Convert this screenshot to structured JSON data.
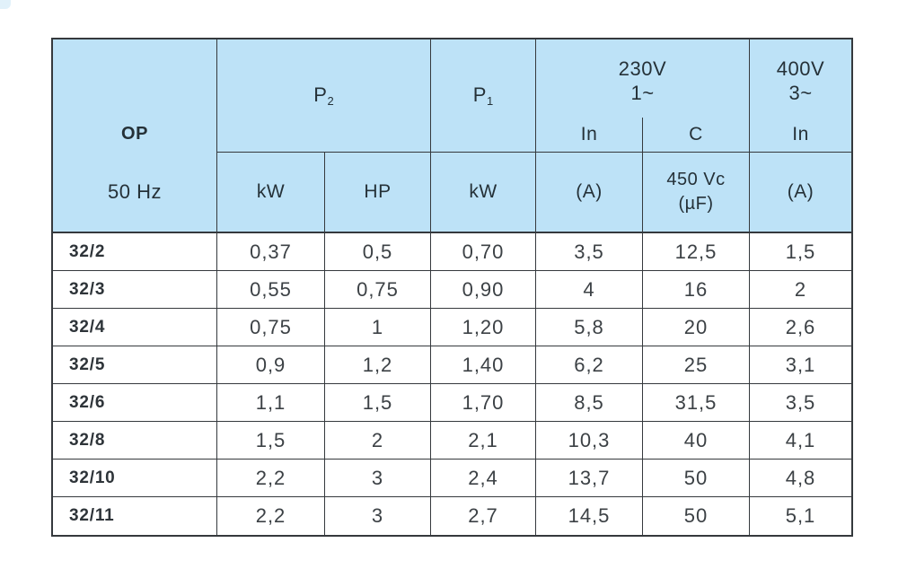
{
  "table": {
    "title_cell": {
      "model_series": "OP",
      "frequency": "50 Hz"
    },
    "header": {
      "p2": {
        "base": "P",
        "sub": "2"
      },
      "p1": {
        "base": "P",
        "sub": "1"
      },
      "v230": {
        "line1": "230V",
        "line2": "1~",
        "col_in": "In",
        "col_c": "C"
      },
      "v400": {
        "line1": "400V",
        "line2": "3~",
        "col_in": "In"
      },
      "units": {
        "p2_kw": "kW",
        "p2_hp": "HP",
        "p1_kw": "kW",
        "in230_a": "(A)",
        "c_line1": "450 Vc",
        "c_line2": "(µF)",
        "in400_a": "(A)"
      }
    },
    "rows": [
      [
        "32/2",
        "0,37",
        "0,5",
        "0,70",
        "3,5",
        "12,5",
        "1,5"
      ],
      [
        "32/3",
        "0,55",
        "0,75",
        "0,90",
        "4",
        "16",
        "2"
      ],
      [
        "32/4",
        "0,75",
        "1",
        "1,20",
        "5,8",
        "20",
        "2,6"
      ],
      [
        "32/5",
        "0,9",
        "1,2",
        "1,40",
        "6,2",
        "25",
        "3,1"
      ],
      [
        "32/6",
        "1,1",
        "1,5",
        "1,70",
        "8,5",
        "31,5",
        "3,5"
      ],
      [
        "32/8",
        "1,5",
        "2",
        "2,1",
        "10,3",
        "40",
        "4,1"
      ],
      [
        "32/10",
        "2,2",
        "3",
        "2,4",
        "13,7",
        "50",
        "4,8"
      ],
      [
        "32/11",
        "2,2",
        "3",
        "2,7",
        "14,5",
        "50",
        "5,1"
      ]
    ],
    "colors": {
      "header_bg": "#bde2f7",
      "grid_line": "#35393d",
      "header_text": "#253138",
      "data_text": "#3c4145"
    }
  }
}
